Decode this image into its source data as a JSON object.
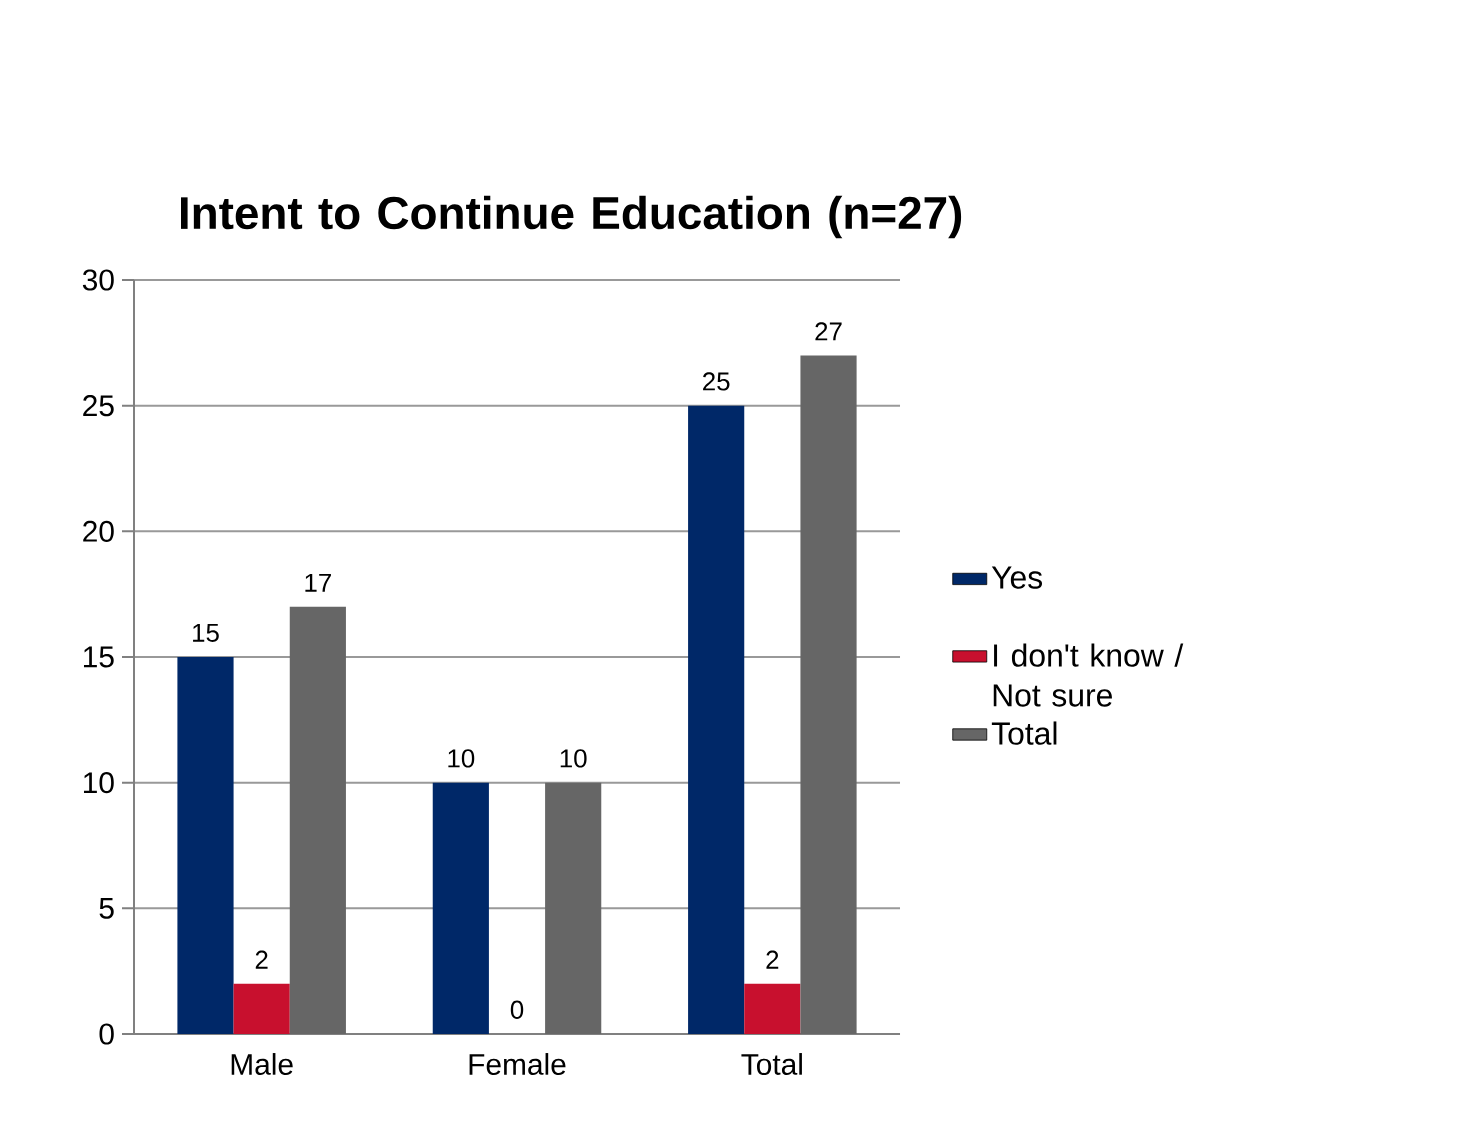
{
  "chart_data": {
    "type": "bar",
    "title": "Intent to Continue Education (n=27)",
    "categories": [
      "Male",
      "Female",
      "Total"
    ],
    "series": [
      {
        "name": "Yes",
        "color": "#002868",
        "values": [
          15,
          10,
          25
        ]
      },
      {
        "name": "I don't know / Not sure",
        "color": "#c8102e",
        "values": [
          2,
          0,
          2
        ]
      },
      {
        "name": "Total",
        "color": "#666666",
        "values": [
          17,
          10,
          27
        ]
      }
    ],
    "ylim": [
      0,
      30
    ],
    "yticks": [
      0,
      5,
      10,
      15,
      20,
      25,
      30
    ],
    "grid": "y",
    "legend": "right",
    "data_labels": true
  }
}
